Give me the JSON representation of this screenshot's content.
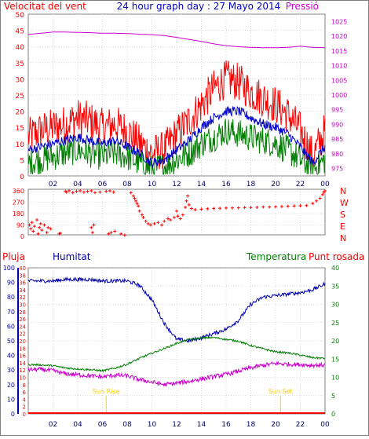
{
  "header": {
    "left_title": "Velocitat del vent",
    "center_title": "24 hour graph day : 27 Mayo 2014",
    "right_title": "Pressió"
  },
  "bottom_header": {
    "pluja": "Pluja",
    "humitat": "Humitat",
    "temperatura": "Temperatura",
    "punt_rosada": "Punt rosada"
  },
  "colors": {
    "wind_gust": "#ff0000",
    "wind_avg": "#0000cc",
    "wind_low": "#007f00",
    "pressure": "#cc00cc",
    "direction": "#ff0000",
    "humidity": "#0000aa",
    "temperature": "#007f00",
    "dewpoint": "#cc00cc",
    "rain": "#ff0000",
    "sun": "#ffcc00",
    "grid": "#bfbfbf"
  },
  "chart_data": [
    {
      "type": "line",
      "name": "wind-pressure",
      "x_ticks": [
        "02",
        "04",
        "06",
        "08",
        "10",
        "12",
        "14",
        "16",
        "18",
        "20",
        "22",
        "00"
      ],
      "y_left_ticks": [
        0,
        5,
        10,
        15,
        20,
        25,
        30,
        35,
        40,
        45,
        50
      ],
      "y_right_ticks": [
        975,
        980,
        985,
        990,
        995,
        1000,
        1005,
        1010,
        1015,
        1020,
        1025
      ],
      "ylim_left": [
        0,
        50
      ],
      "ylim_right": [
        972.5,
        1027.5
      ],
      "hours": [
        0,
        1,
        2,
        3,
        4,
        5,
        6,
        7,
        8,
        9,
        10,
        11,
        12,
        13,
        14,
        15,
        16,
        17,
        18,
        19,
        20,
        21,
        22,
        23,
        24
      ],
      "gust": [
        12,
        14,
        15,
        16,
        18,
        17,
        15,
        16,
        14,
        10,
        7,
        8,
        13,
        17,
        22,
        27,
        30,
        29,
        26,
        24,
        22,
        19,
        14,
        6,
        14
      ],
      "avg": [
        8,
        9,
        10,
        11,
        12,
        11,
        10,
        11,
        9,
        7,
        4,
        5,
        8,
        11,
        15,
        18,
        20,
        20,
        18,
        16,
        15,
        13,
        9,
        4,
        9
      ],
      "low": [
        4,
        5,
        6,
        7,
        8,
        7,
        6,
        7,
        6,
        4,
        2,
        3,
        5,
        7,
        10,
        12,
        14,
        13,
        12,
        11,
        10,
        8,
        5,
        2,
        5
      ],
      "pressure": [
        1020.6,
        1021.0,
        1021.4,
        1021.4,
        1021.3,
        1021.2,
        1021.0,
        1021.0,
        1020.9,
        1020.7,
        1020.5,
        1020.2,
        1019.6,
        1018.9,
        1018.2,
        1017.4,
        1016.8,
        1016.4,
        1016.2,
        1016.1,
        1016.1,
        1016.2,
        1016.6,
        1016.2,
        1016.1
      ]
    },
    {
      "type": "scatter",
      "name": "wind-direction",
      "y_ticks": [
        0,
        90,
        180,
        270,
        360
      ],
      "ylim": [
        0,
        360
      ],
      "compass": [
        "N",
        "W",
        "S",
        "E",
        "N"
      ],
      "points": [
        [
          0.1,
          90
        ],
        [
          0.2,
          60
        ],
        [
          0.3,
          110
        ],
        [
          0.4,
          40
        ],
        [
          0.5,
          80
        ],
        [
          0.7,
          130
        ],
        [
          0.8,
          20
        ],
        [
          0.9,
          70
        ],
        [
          1.0,
          100
        ],
        [
          1.1,
          50
        ],
        [
          1.3,
          90
        ],
        [
          1.5,
          30
        ],
        [
          1.6,
          70
        ],
        [
          1.8,
          60
        ],
        [
          2.5,
          20
        ],
        [
          2.6,
          25
        ],
        [
          3.0,
          355
        ],
        [
          3.1,
          350
        ],
        [
          3.3,
          360
        ],
        [
          3.6,
          345
        ],
        [
          3.9,
          355
        ],
        [
          4.2,
          360
        ],
        [
          4.5,
          350
        ],
        [
          4.8,
          355
        ],
        [
          5.1,
          360
        ],
        [
          5.4,
          345
        ],
        [
          5.8,
          350
        ],
        [
          5.1,
          70
        ],
        [
          5.2,
          30
        ],
        [
          5.3,
          90
        ],
        [
          6.3,
          355
        ],
        [
          6.6,
          360
        ],
        [
          6.9,
          350
        ],
        [
          6.5,
          20
        ],
        [
          6.7,
          30
        ],
        [
          7.0,
          40
        ],
        [
          7.5,
          20
        ],
        [
          7.8,
          10
        ],
        [
          8.3,
          345
        ],
        [
          8.5,
          320
        ],
        [
          8.6,
          300
        ],
        [
          8.7,
          280
        ],
        [
          8.8,
          260
        ],
        [
          8.9,
          240
        ],
        [
          9.0,
          200
        ],
        [
          9.2,
          170
        ],
        [
          9.3,
          150
        ],
        [
          9.5,
          120
        ],
        [
          9.7,
          100
        ],
        [
          9.9,
          90
        ],
        [
          10.2,
          100
        ],
        [
          10.5,
          110
        ],
        [
          10.8,
          90
        ],
        [
          11.0,
          120
        ],
        [
          11.3,
          140
        ],
        [
          11.5,
          130
        ],
        [
          11.8,
          150
        ],
        [
          12.0,
          200
        ],
        [
          12.1,
          160
        ],
        [
          12.3,
          140
        ],
        [
          12.5,
          170
        ],
        [
          12.7,
          230
        ],
        [
          12.8,
          280
        ],
        [
          12.9,
          320
        ],
        [
          13.0,
          250
        ],
        [
          13.2,
          220
        ],
        [
          13.5,
          210
        ],
        [
          14.0,
          215
        ],
        [
          14.5,
          218
        ],
        [
          15.0,
          220
        ],
        [
          15.5,
          222
        ],
        [
          16.0,
          224
        ],
        [
          16.5,
          225
        ],
        [
          17.0,
          226
        ],
        [
          17.5,
          228
        ],
        [
          18.0,
          228
        ],
        [
          18.5,
          230
        ],
        [
          19.0,
          232
        ],
        [
          19.5,
          232
        ],
        [
          20.0,
          234
        ],
        [
          20.5,
          236
        ],
        [
          21.0,
          238
        ],
        [
          21.5,
          240
        ],
        [
          22.0,
          242
        ],
        [
          22.5,
          244
        ],
        [
          23.0,
          260
        ],
        [
          23.3,
          280
        ],
        [
          23.6,
          300
        ],
        [
          23.8,
          330
        ],
        [
          23.9,
          350
        ],
        [
          24.0,
          360
        ]
      ]
    },
    {
      "type": "line",
      "name": "humidity-temperature-dewpoint-rain",
      "x_ticks": [
        "02",
        "04",
        "06",
        "08",
        "10",
        "12",
        "14",
        "16",
        "18",
        "20",
        "22",
        "00"
      ],
      "y_left_ticks": [
        0,
        2,
        4,
        6,
        8,
        10,
        12,
        14,
        16,
        18,
        20,
        22,
        24,
        26,
        28,
        30,
        32,
        34,
        36,
        38,
        40
      ],
      "y_right_ticks": [
        0,
        5,
        10,
        15,
        20,
        25,
        30,
        35,
        40
      ],
      "y_humidity_ticks": [
        0,
        10,
        20,
        30,
        40,
        50,
        60,
        70,
        80,
        90,
        100
      ],
      "ylim_humidity": [
        0,
        100
      ],
      "ylim_temperature": [
        0,
        40
      ],
      "sun_rise_label": "Sun Rise",
      "sun_set_label": "Sun Set",
      "sun_rise_hour": 6.3,
      "sun_set_hour": 20.4,
      "hours": [
        0,
        1,
        2,
        3,
        4,
        5,
        6,
        7,
        8,
        9,
        10,
        11,
        12,
        13,
        14,
        15,
        16,
        17,
        18,
        19,
        20,
        21,
        22,
        23,
        24
      ],
      "humidity": [
        91,
        91,
        91,
        92,
        92,
        92,
        91,
        91,
        91,
        88,
        78,
        62,
        51,
        50,
        52,
        55,
        58,
        64,
        75,
        80,
        81,
        82,
        83,
        85,
        89
      ],
      "temperature": [
        13.5,
        13.4,
        13.2,
        12.6,
        12.3,
        12.1,
        11.8,
        12.5,
        13.6,
        15.2,
        16.6,
        17.9,
        19.3,
        20.4,
        20.8,
        20.9,
        20.4,
        19.9,
        18.7,
        17.8,
        17.0,
        16.7,
        16.1,
        15.4,
        15.2
      ],
      "dewpoint": [
        12.1,
        12.2,
        11.8,
        11.0,
        10.7,
        10.4,
        10.1,
        10.6,
        10.4,
        9.4,
        8.7,
        8.0,
        8.4,
        8.9,
        9.6,
        10.2,
        10.8,
        11.7,
        12.6,
        13.3,
        13.8,
        13.6,
        13.5,
        13.3,
        13.4
      ],
      "rain": [
        0,
        0,
        0,
        0,
        0,
        0,
        0,
        0,
        0,
        0,
        0,
        0,
        0,
        0,
        0,
        0,
        0,
        0,
        0,
        0,
        0,
        0,
        0,
        0,
        0
      ]
    }
  ]
}
